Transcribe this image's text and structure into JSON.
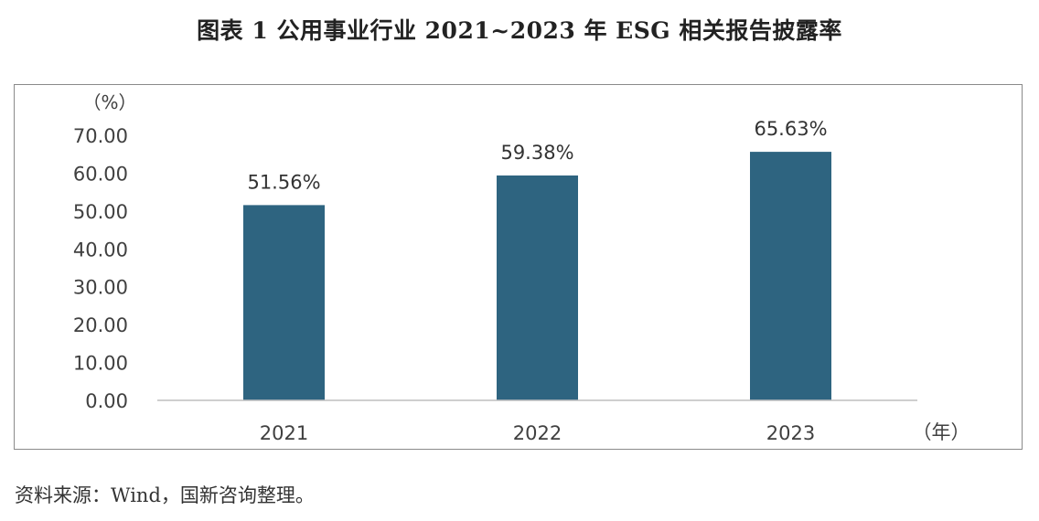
{
  "figure": {
    "title": "图表 1 公用事业行业 2021~2023 年 ESG 相关报告披露率",
    "source": "资料来源：Wind，国新咨询整理。"
  },
  "chart_data": {
    "type": "bar",
    "categories": [
      "2021",
      "2022",
      "2023"
    ],
    "values": [
      51.56,
      59.38,
      65.63
    ],
    "data_labels": [
      "51.56%",
      "59.38%",
      "65.63%"
    ],
    "y_unit": "（%）",
    "x_unit": "（年）",
    "ylim": [
      0,
      70
    ],
    "yticks": [
      "0.00",
      "10.00",
      "20.00",
      "30.00",
      "40.00",
      "50.00",
      "60.00",
      "70.00"
    ],
    "grid": false,
    "legend": "none",
    "bar_color": "#2e6480"
  }
}
